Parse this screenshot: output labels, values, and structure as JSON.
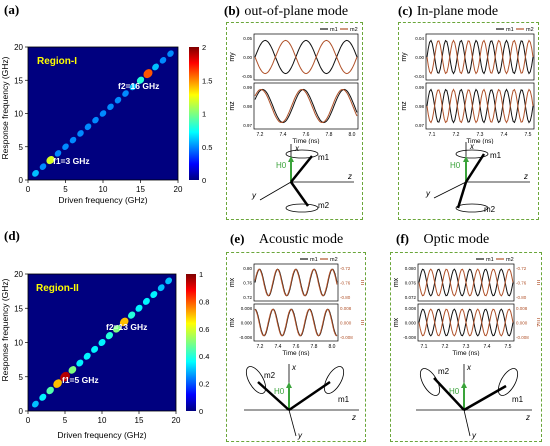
{
  "panels": {
    "a": {
      "label": "(a)",
      "region": "Region-I",
      "f1": "f1=3 GHz",
      "f2": "f2=16 GHz",
      "xlabel": "Driven frequency (GHz)",
      "ylabel": "Response frequency (GHz)",
      "xticks": [
        "0",
        "5",
        "10",
        "15",
        "20"
      ],
      "yticks": [
        "0",
        "5",
        "10",
        "15",
        "20"
      ],
      "cbar_ticks": [
        "0",
        "0.5",
        "1",
        "1.5",
        "2"
      ]
    },
    "b": {
      "label": "(b)",
      "title": "out-of-plane mode"
    },
    "c": {
      "label": "(c)",
      "title": "In-plane mode"
    },
    "d": {
      "label": "(d)",
      "region": "Region-II",
      "f1": "f1=5 GHz",
      "f2": "f2=13 GHz",
      "xlabel": "Driven frequency (GHz)",
      "ylabel": "Response frequency (GHz)",
      "xticks": [
        "0",
        "5",
        "10",
        "15",
        "20"
      ],
      "yticks": [
        "0",
        "5",
        "10",
        "15",
        "20"
      ],
      "cbar_ticks": [
        "0",
        "0.2",
        "0.4",
        "0.6",
        "0.8",
        "1"
      ]
    },
    "e": {
      "label": "(e)",
      "title": "Acoustic mode"
    },
    "f": {
      "label": "(f)",
      "title": "Optic mode"
    }
  },
  "mini": {
    "b": {
      "top_ylabel": "my",
      "bot_ylabel": "mz",
      "xlabel": "Time (ns)",
      "top_yticks": [
        "0.05",
        "0.00",
        "-0.05"
      ],
      "bot_yticks": [
        "0.99",
        "0.98",
        "0.97"
      ],
      "xticks": [
        "7.2",
        "7.4",
        "7.6",
        "7.8",
        "8.0"
      ],
      "legend": [
        "m1",
        "m2"
      ]
    },
    "c": {
      "top_ylabel": "my",
      "bot_ylabel": "mz",
      "xlabel": "Time (ns)",
      "top_yticks": [
        "0.04",
        "0.00",
        "-0.04"
      ],
      "bot_yticks": [
        "0.99",
        "0.98",
        "0.97"
      ],
      "xticks": [
        "7.1",
        "7.2",
        "7.3",
        "7.4",
        "7.5"
      ],
      "legend": [
        "m1",
        "m2"
      ]
    },
    "e": {
      "top_ylabel": "mx",
      "bot_ylabel": "mx",
      "right_top": "m",
      "right_bot": "m",
      "xlabel": "Time (ns)",
      "top_yticks": [
        "0.80",
        "0.76",
        "0.72"
      ],
      "top_ryticks": [
        "-0.72",
        "-0.76",
        "-0.80"
      ],
      "bot_yticks": [
        "0.008",
        "0.000",
        "-0.008"
      ],
      "bot_ryticks": [
        "0.008",
        "0.000",
        "-0.008"
      ],
      "xticks": [
        "7.2",
        "7.4",
        "7.6",
        "7.8",
        "8.0"
      ],
      "legend": [
        "m1",
        "m2"
      ]
    },
    "f": {
      "top_ylabel": "mx",
      "bot_ylabel": "mx",
      "right_top": "m",
      "right_bot": "mz",
      "xlabel": "Time (ns)",
      "top_yticks": [
        "0.080",
        "0.076",
        "0.072"
      ],
      "top_ryticks": [
        "-0.72",
        "-0.76",
        "-0.80"
      ],
      "bot_yticks": [
        "0.008",
        "0.000",
        "-0.008"
      ],
      "bot_ryticks": [
        "0.008",
        "0.000",
        "-0.008"
      ],
      "xticks": [
        "7.1",
        "7.2",
        "7.3",
        "7.4",
        "7.5"
      ],
      "legend": [
        "m1",
        "m2"
      ]
    }
  },
  "colors": {
    "m1": "#111111",
    "m2": "#b0522a",
    "box": "#6aa63a",
    "bg_map": "#00007f",
    "H0": "#3aa33a"
  },
  "schematic": {
    "H0": "H0",
    "x": "x",
    "y": "y",
    "z": "z",
    "m1": "m1",
    "m2": "m2"
  },
  "chart_data": [
    {
      "type": "heatmap",
      "title": "Region-I",
      "xlabel": "Driven frequency (GHz)",
      "ylabel": "Response frequency (GHz)",
      "xlim": [
        0,
        20
      ],
      "ylim": [
        0,
        20
      ],
      "clim": [
        0,
        2
      ],
      "diagonal": [
        {
          "x": 1,
          "y": 1,
          "v": 0.6
        },
        {
          "x": 2,
          "y": 2,
          "v": 0.5
        },
        {
          "x": 3,
          "y": 3,
          "v": 1.2
        },
        {
          "x": 4,
          "y": 4,
          "v": 0.5
        },
        {
          "x": 5,
          "y": 5,
          "v": 0.5
        },
        {
          "x": 6,
          "y": 6,
          "v": 0.5
        },
        {
          "x": 7,
          "y": 7,
          "v": 0.5
        },
        {
          "x": 8,
          "y": 8,
          "v": 0.5
        },
        {
          "x": 9,
          "y": 9,
          "v": 0.5
        },
        {
          "x": 10,
          "y": 10,
          "v": 0.5
        },
        {
          "x": 11,
          "y": 11,
          "v": 0.5
        },
        {
          "x": 12,
          "y": 12,
          "v": 0.5
        },
        {
          "x": 13,
          "y": 13,
          "v": 0.5
        },
        {
          "x": 14,
          "y": 14,
          "v": 0.6
        },
        {
          "x": 15,
          "y": 15,
          "v": 0.8
        },
        {
          "x": 16,
          "y": 16,
          "v": 1.6
        },
        {
          "x": 17,
          "y": 17,
          "v": 0.6
        },
        {
          "x": 18,
          "y": 18,
          "v": 0.5
        },
        {
          "x": 19,
          "y": 19,
          "v": 0.5
        }
      ],
      "annotations": [
        "f1=3 GHz",
        "f2=16 GHz"
      ]
    },
    {
      "type": "heatmap",
      "title": "Region-II",
      "xlabel": "Driven frequency (GHz)",
      "ylabel": "Response frequency (GHz)",
      "xlim": [
        0,
        20
      ],
      "ylim": [
        0,
        20
      ],
      "clim": [
        0,
        1
      ],
      "diagonal": [
        {
          "x": 1,
          "y": 1,
          "v": 0.3
        },
        {
          "x": 2,
          "y": 2,
          "v": 0.35
        },
        {
          "x": 3,
          "y": 3,
          "v": 0.45
        },
        {
          "x": 4,
          "y": 4,
          "v": 0.7
        },
        {
          "x": 5,
          "y": 5,
          "v": 0.95
        },
        {
          "x": 6,
          "y": 6,
          "v": 0.5
        },
        {
          "x": 7,
          "y": 7,
          "v": 0.35
        },
        {
          "x": 8,
          "y": 8,
          "v": 0.35
        },
        {
          "x": 9,
          "y": 9,
          "v": 0.35
        },
        {
          "x": 10,
          "y": 10,
          "v": 0.35
        },
        {
          "x": 11,
          "y": 11,
          "v": 0.4
        },
        {
          "x": 12,
          "y": 12,
          "v": 0.5
        },
        {
          "x": 13,
          "y": 13,
          "v": 0.7
        },
        {
          "x": 14,
          "y": 14,
          "v": 0.4
        },
        {
          "x": 15,
          "y": 15,
          "v": 0.35
        },
        {
          "x": 16,
          "y": 16,
          "v": 0.35
        },
        {
          "x": 17,
          "y": 17,
          "v": 0.35
        },
        {
          "x": 18,
          "y": 18,
          "v": 0.3
        },
        {
          "x": 19,
          "y": 19,
          "v": 0.3
        }
      ],
      "annotations": [
        "f1=5 GHz",
        "f2=13 GHz"
      ]
    }
  ]
}
